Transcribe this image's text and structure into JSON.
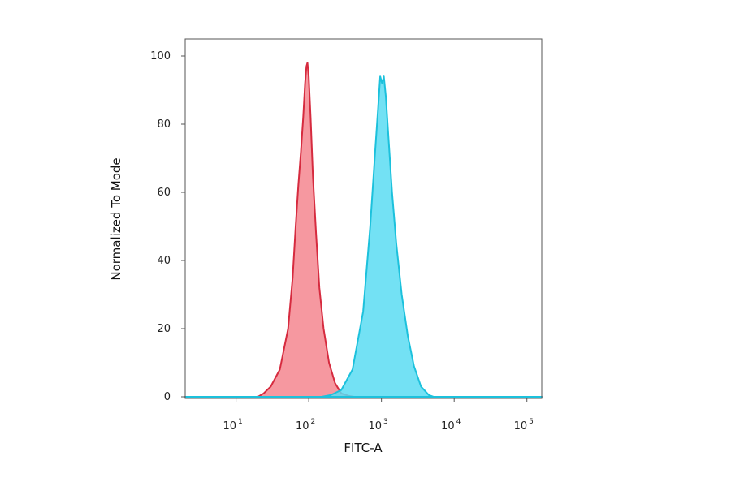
{
  "chart_data": {
    "type": "area",
    "xlabel": "FITC-A",
    "ylabel": "Normalized To Mode",
    "x_scale": "log",
    "xlim": [
      2,
      160000
    ],
    "ylim": [
      0,
      105
    ],
    "grid": false,
    "legend": "none",
    "x_ticks": [
      {
        "value": 10,
        "base": "10",
        "exp": "1"
      },
      {
        "value": 100,
        "base": "10",
        "exp": "2"
      },
      {
        "value": 1000,
        "base": "10",
        "exp": "3"
      },
      {
        "value": 10000,
        "base": "10",
        "exp": "4"
      },
      {
        "value": 100000,
        "base": "10",
        "exp": "5"
      }
    ],
    "y_ticks": [
      {
        "value": 0,
        "label": "0"
      },
      {
        "value": 20,
        "label": "20"
      },
      {
        "value": 40,
        "label": "40"
      },
      {
        "value": 60,
        "label": "60"
      },
      {
        "value": 80,
        "label": "80"
      },
      {
        "value": 100,
        "label": "100"
      }
    ],
    "series": [
      {
        "color": "#d62b3f",
        "fill": "#f4868f",
        "x": [
          2,
          20,
          24,
          30,
          40,
          52,
          60,
          66,
          72,
          78,
          84,
          89,
          93,
          96,
          100,
          106,
          114,
          126,
          140,
          160,
          190,
          230,
          280,
          350,
          420,
          160000
        ],
        "y": [
          0,
          0,
          1,
          3,
          8,
          20,
          35,
          50,
          62,
          72,
          82,
          92,
          97,
          98,
          94,
          82,
          65,
          48,
          32,
          20,
          10,
          4,
          1,
          0.3,
          0,
          0
        ]
      },
      {
        "color": "#1cc1dc",
        "fill": "#5bdcf2",
        "x": [
          2,
          150,
          200,
          280,
          400,
          560,
          700,
          820,
          900,
          960,
          1020,
          1080,
          1150,
          1260,
          1400,
          1600,
          1900,
          2300,
          2800,
          3500,
          4500,
          5200,
          160000
        ],
        "y": [
          0,
          0,
          0.5,
          2,
          8,
          25,
          50,
          72,
          85,
          94,
          92,
          94,
          88,
          75,
          60,
          45,
          30,
          18,
          9,
          3,
          0.5,
          0,
          0
        ]
      }
    ]
  }
}
